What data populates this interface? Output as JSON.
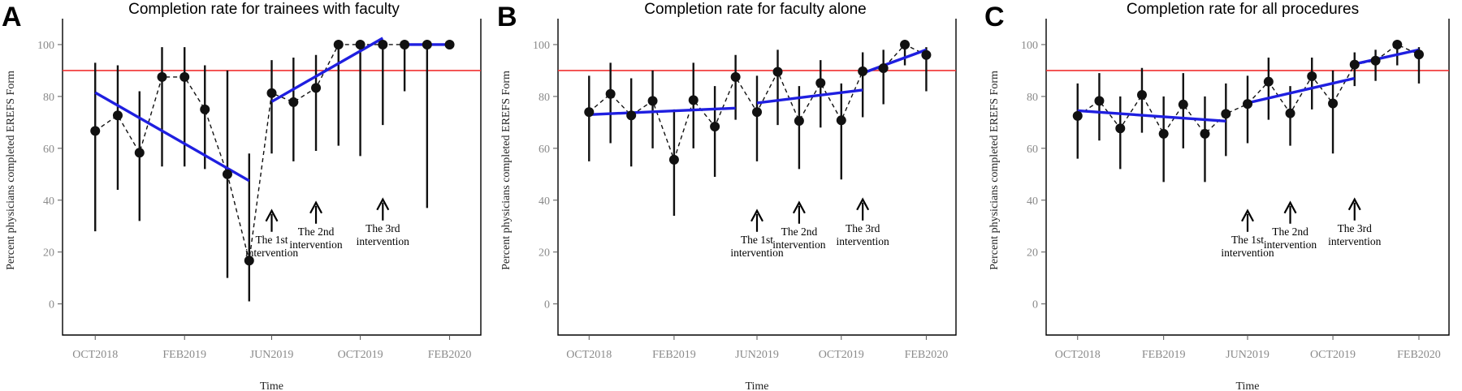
{
  "chart_data": [
    {
      "panel": "A",
      "type": "line",
      "title": "Completion rate for trainees with faculty",
      "xlabel": "Time",
      "ylabel": "Percent physicians completed EREFS Form",
      "ylim": [
        -12,
        110
      ],
      "xlim": [
        "2018-08-17",
        "2020-03-15"
      ],
      "yticks": [
        0,
        20,
        40,
        60,
        80,
        100
      ],
      "xticks": [
        "OCT2018",
        "FEB2019",
        "JUN2019",
        "OCT2019",
        "FEB2020"
      ],
      "reference_line": {
        "y": 90,
        "color": "#f03030"
      },
      "series": [
        {
          "x": [
            "2018-10",
            "2018-11",
            "2018-12",
            "2019-01",
            "2019-02",
            "2019-03",
            "2019-04",
            "2019-05",
            "2019-06",
            "2019-07",
            "2019-08",
            "2019-09",
            "2019-10",
            "2019-11",
            "2019-12",
            "2020-01",
            "2020-02"
          ],
          "y": [
            66.7,
            72.7,
            58.3,
            87.5,
            87.5,
            75,
            50,
            16.7,
            81.3,
            77.8,
            83.3,
            100,
            100,
            100,
            100,
            100,
            100
          ],
          "ci_low": [
            28,
            44,
            32,
            53,
            53,
            52,
            10,
            1,
            58,
            55,
            59,
            61,
            57,
            69,
            82,
            37,
            100
          ],
          "ci_high": [
            93,
            92,
            82,
            99,
            99,
            92,
            90,
            58,
            94,
            95,
            96,
            100,
            100,
            100,
            100,
            100,
            100
          ]
        }
      ],
      "trend_lines": [
        {
          "x": [
            "2018-10",
            "2019-05"
          ],
          "y": [
            81.5,
            47.5
          ]
        },
        {
          "x": [
            "2019-06",
            "2019-11"
          ],
          "y": [
            78,
            102.5
          ]
        },
        {
          "x": [
            "2019-12",
            "2020-02"
          ],
          "y": [
            100,
            100
          ]
        }
      ],
      "annotations": [
        {
          "lines": [
            "The 1st",
            "intervention"
          ],
          "x": "2019-06"
        },
        {
          "lines": [
            "The 2nd",
            "intervention"
          ],
          "x": "2019-08"
        },
        {
          "lines": [
            "The 3rd",
            "intervention"
          ],
          "x": "2019-11"
        }
      ]
    },
    {
      "panel": "B",
      "type": "line",
      "title": "Completion rate for faculty alone",
      "xlabel": "Time",
      "ylabel": "Percent physicians completed EREFS Form",
      "ylim": [
        -12,
        110
      ],
      "xlim": [
        "2018-08-17",
        "2020-03-15"
      ],
      "yticks": [
        0,
        20,
        40,
        60,
        80,
        100
      ],
      "xticks": [
        "OCT2018",
        "FEB2019",
        "JUN2019",
        "OCT2019",
        "FEB2020"
      ],
      "reference_line": {
        "y": 90,
        "color": "#f03030"
      },
      "series": [
        {
          "x": [
            "2018-10",
            "2018-11",
            "2018-12",
            "2019-01",
            "2019-02",
            "2019-03",
            "2019-04",
            "2019-05",
            "2019-06",
            "2019-07",
            "2019-08",
            "2019-09",
            "2019-10",
            "2019-11",
            "2019-12",
            "2020-01",
            "2020-02"
          ],
          "y": [
            74,
            81,
            72.7,
            78.3,
            55.6,
            78.6,
            68.4,
            87.5,
            74,
            89.5,
            70.6,
            85.2,
            70.8,
            89.7,
            90.9,
            100,
            96
          ],
          "ci_low": [
            55,
            62,
            53,
            60,
            34,
            60,
            49,
            71,
            55,
            69,
            52,
            68,
            48,
            72,
            77,
            92,
            82
          ],
          "ci_high": [
            88,
            93,
            87,
            90,
            75,
            93,
            84,
            96,
            88,
            98,
            84,
            94,
            85,
            97,
            98,
            100,
            99
          ]
        }
      ],
      "trend_lines": [
        {
          "x": [
            "2018-10",
            "2019-05"
          ],
          "y": [
            73,
            75.5
          ]
        },
        {
          "x": [
            "2019-06",
            "2019-11"
          ],
          "y": [
            77.5,
            82.5
          ]
        },
        {
          "x": [
            "2019-11",
            "2020-02"
          ],
          "y": [
            89,
            98
          ]
        }
      ],
      "annotations": [
        {
          "lines": [
            "The 1st",
            "intervention"
          ],
          "x": "2019-06"
        },
        {
          "lines": [
            "The 2nd",
            "intervention"
          ],
          "x": "2019-08"
        },
        {
          "lines": [
            "The 3rd",
            "intervention"
          ],
          "x": "2019-11"
        }
      ]
    },
    {
      "panel": "C",
      "type": "line",
      "title": "Completion rate for all procedures",
      "xlabel": "Time",
      "ylabel": "Percent physicians completed EREFS Form",
      "ylim": [
        -12,
        110
      ],
      "xlim": [
        "2018-08-17",
        "2020-03-15"
      ],
      "yticks": [
        0,
        20,
        40,
        60,
        80,
        100
      ],
      "xticks": [
        "OCT2018",
        "FEB2019",
        "JUN2019",
        "OCT2019",
        "FEB2020"
      ],
      "reference_line": {
        "y": 90,
        "color": "#f03030"
      },
      "series": [
        {
          "x": [
            "2018-10",
            "2018-11",
            "2018-12",
            "2019-01",
            "2019-02",
            "2019-03",
            "2019-04",
            "2019-05",
            "2019-06",
            "2019-07",
            "2019-08",
            "2019-09",
            "2019-10",
            "2019-11",
            "2019-12",
            "2020-01",
            "2020-02"
          ],
          "y": [
            72.5,
            78.3,
            67.7,
            80.6,
            65.6,
            76.9,
            65.6,
            73.3,
            77.1,
            85.7,
            73.5,
            87.8,
            77.3,
            92.3,
            93.8,
            100,
            96.2
          ],
          "ci_low": [
            56,
            63,
            52,
            66,
            47,
            60,
            47,
            57,
            62,
            71,
            61,
            75,
            58,
            84,
            86,
            92,
            85
          ],
          "ci_high": [
            85,
            89,
            80,
            91,
            80,
            89,
            80,
            85,
            88,
            95,
            84,
            95,
            90,
            97,
            98,
            100,
            99
          ]
        }
      ],
      "trend_lines": [
        {
          "x": [
            "2018-10",
            "2019-05"
          ],
          "y": [
            74.5,
            70.5
          ]
        },
        {
          "x": [
            "2019-06",
            "2019-11"
          ],
          "y": [
            77.5,
            87
          ]
        },
        {
          "x": [
            "2019-11",
            "2020-02"
          ],
          "y": [
            92.5,
            98
          ]
        }
      ],
      "annotations": [
        {
          "lines": [
            "The 1st",
            "intervention"
          ],
          "x": "2019-06"
        },
        {
          "lines": [
            "The 2nd",
            "intervention"
          ],
          "x": "2019-08"
        },
        {
          "lines": [
            "The 3rd",
            "intervention"
          ],
          "x": "2019-11"
        }
      ]
    }
  ]
}
